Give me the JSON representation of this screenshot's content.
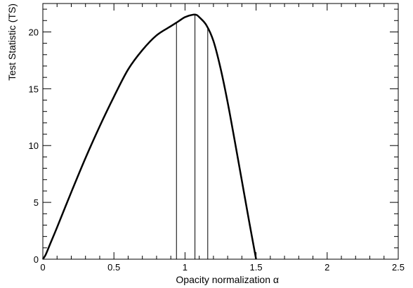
{
  "chart_data": {
    "type": "line",
    "title": "",
    "xlabel": "Opacity normalization α",
    "ylabel": "Test Statistic (TS)",
    "xlim": [
      0,
      2.5
    ],
    "ylim": [
      0,
      22.5
    ],
    "x_ticks": [
      "0",
      "0.5",
      "1",
      "1.5",
      "2",
      "2.5"
    ],
    "y_ticks": [
      "0",
      "5",
      "10",
      "15",
      "20"
    ],
    "x_tick_values": [
      0,
      0.5,
      1,
      1.5,
      2,
      2.5
    ],
    "y_tick_values": [
      0,
      5,
      10,
      15,
      20
    ],
    "grid": false,
    "legend": "none",
    "series": [
      {
        "x": [
          0,
          0.02,
          0.05,
          0.1,
          0.2,
          0.3,
          0.4,
          0.5,
          0.6,
          0.7,
          0.8,
          0.9,
          0.95,
          1.0,
          1.05,
          1.08,
          1.1,
          1.15,
          1.2,
          1.25,
          1.3,
          1.35,
          1.4,
          1.45,
          1.5
        ],
        "y": [
          0,
          0.4,
          1.3,
          2.8,
          5.9,
          8.9,
          11.7,
          14.3,
          16.7,
          18.4,
          19.7,
          20.5,
          20.9,
          21.3,
          21.5,
          21.5,
          21.3,
          20.6,
          19.2,
          16.8,
          13.8,
          10.4,
          6.9,
          3.4,
          0
        ]
      }
    ],
    "vertical_lines": [
      0.94,
      1.07,
      1.16
    ],
    "colors": {
      "line": "#000000",
      "frame": "#000000"
    }
  }
}
